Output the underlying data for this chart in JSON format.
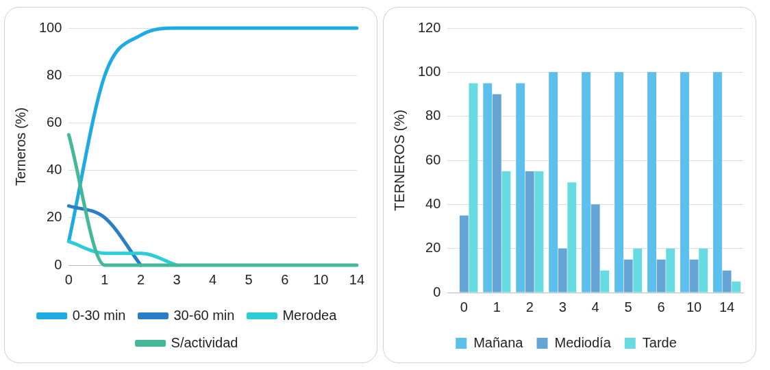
{
  "chart_data": [
    {
      "type": "line",
      "ylabel": "Terneros (%)",
      "categories": [
        "0",
        "1",
        "2",
        "3",
        "4",
        "5",
        "6",
        "10",
        "14"
      ],
      "ylim": [
        0,
        100
      ],
      "yticks": [
        0,
        20,
        40,
        60,
        80,
        100
      ],
      "grid": "y",
      "legend": "bottom",
      "marker": "none",
      "line_style": "solid",
      "series": [
        {
          "name": "0-30 min",
          "color": "#1eaae2",
          "values": [
            10,
            80,
            97,
            100,
            100,
            100,
            100,
            100,
            100
          ]
        },
        {
          "name": "30-60 min",
          "color": "#2a7fc4",
          "values": [
            25,
            20,
            0,
            null,
            null,
            null,
            null,
            null,
            null
          ]
        },
        {
          "name": "Merodea",
          "color": "#2ccdd8",
          "values": [
            10,
            5,
            5,
            0,
            null,
            null,
            null,
            null,
            null
          ]
        },
        {
          "name": "S/actividad",
          "color": "#45b899",
          "values": [
            55,
            0,
            0,
            0,
            0,
            0,
            0,
            0,
            0
          ]
        }
      ]
    },
    {
      "type": "bar",
      "ylabel": "TERNEROS (%)",
      "categories": [
        "0",
        "1",
        "2",
        "3",
        "4",
        "5",
        "6",
        "10",
        "14"
      ],
      "ylim": [
        0,
        120
      ],
      "yticks": [
        0,
        20,
        40,
        60,
        80,
        100,
        120
      ],
      "grid": "y",
      "legend": "bottom",
      "series": [
        {
          "name": "Mañana",
          "color": "#5bc0eb",
          "values": [
            0,
            95,
            95,
            100,
            100,
            100,
            100,
            100,
            100
          ]
        },
        {
          "name": "Mediodía",
          "color": "#65a5d6",
          "values": [
            35,
            90,
            55,
            20,
            40,
            15,
            15,
            15,
            10
          ]
        },
        {
          "name": "Tarde",
          "color": "#66dbe2",
          "values": [
            95,
            55,
            55,
            50,
            10,
            20,
            20,
            20,
            5
          ]
        }
      ]
    }
  ]
}
